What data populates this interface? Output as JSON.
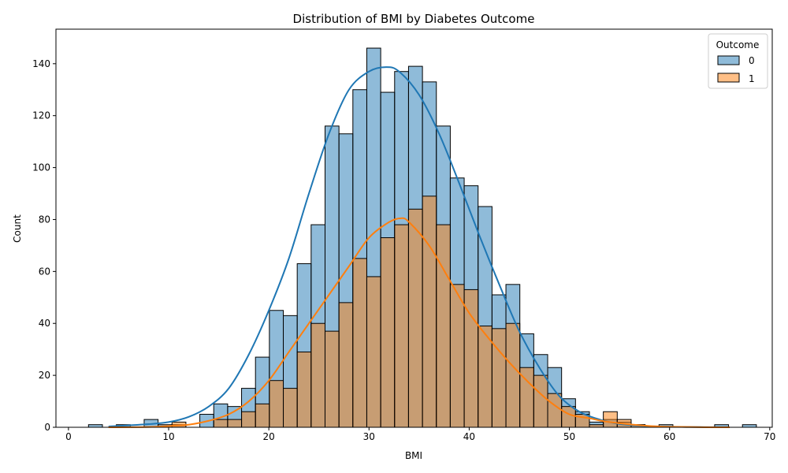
{
  "chart_data": {
    "type": "histogram",
    "title": "Distribution of BMI by Diabetes Outcome",
    "xlabel": "BMI",
    "ylabel": "Count",
    "xlim": [
      -1.25,
      70.25
    ],
    "ylim": [
      0,
      153.3
    ],
    "xticks": [
      0,
      10,
      20,
      30,
      40,
      50,
      60,
      70
    ],
    "yticks": [
      0,
      20,
      40,
      60,
      80,
      100,
      120,
      140
    ],
    "grid": false,
    "legend": {
      "title": "Outcome",
      "position": "top-right"
    },
    "bin_start": 2.0,
    "bin_width": 1.3889,
    "series": [
      {
        "name": "0",
        "color": "#1f77b4",
        "values": [
          1,
          0,
          1,
          0,
          3,
          1,
          1,
          0,
          5,
          9,
          8,
          15,
          27,
          45,
          43,
          63,
          78,
          116,
          113,
          130,
          146,
          129,
          137,
          139,
          133,
          116,
          96,
          93,
          85,
          51,
          55,
          36,
          28,
          23,
          11,
          6,
          2,
          3,
          2,
          1,
          0,
          1,
          0,
          0,
          0,
          1,
          0,
          1
        ],
        "kde_x": [
          4,
          8,
          10,
          12,
          14,
          16,
          18,
          20,
          22,
          24,
          26,
          28,
          30,
          31.7,
          33,
          35,
          37,
          39,
          41,
          43,
          45,
          47,
          49,
          51,
          53,
          55,
          58,
          62,
          66
        ],
        "kde_y": [
          0.3,
          1.2,
          2,
          4,
          8,
          15,
          28,
          45,
          65,
          90,
          113,
          130,
          137,
          138.7,
          137,
          128,
          113,
          94,
          74,
          55,
          37,
          23,
          12,
          6,
          3,
          1.3,
          0.4,
          0.1,
          0
        ]
      },
      {
        "name": "1",
        "color": "#ff7f0e",
        "values": [
          0,
          0,
          0,
          0,
          0,
          0,
          2,
          0,
          0,
          3,
          3,
          6,
          9,
          18,
          15,
          29,
          40,
          37,
          48,
          65,
          58,
          73,
          78,
          84,
          89,
          78,
          55,
          53,
          39,
          38,
          40,
          23,
          20,
          13,
          8,
          5,
          1,
          6,
          3,
          1,
          0,
          0,
          0,
          0,
          0,
          0,
          0,
          0
        ],
        "kde_x": [
          4,
          8,
          10,
          12,
          14,
          16,
          18,
          20,
          22,
          24,
          26,
          28,
          30,
          32,
          33.2,
          34,
          36,
          38,
          40,
          42,
          44,
          46,
          48,
          50,
          52,
          54,
          58,
          62,
          66
        ],
        "kde_y": [
          0,
          0.1,
          0.5,
          1,
          2.5,
          5,
          10,
          18,
          29,
          40,
          51,
          62,
          73,
          79,
          80.5,
          79,
          70,
          57,
          44,
          34,
          25,
          17,
          10,
          5,
          3.5,
          2,
          0.5,
          0.1,
          0
        ]
      }
    ]
  }
}
